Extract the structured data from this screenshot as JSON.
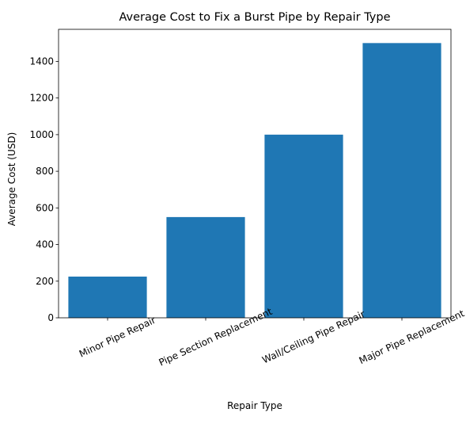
{
  "chart_data": {
    "type": "bar",
    "title": "Average Cost to Fix a Burst Pipe by Repair Type",
    "xlabel": "Repair Type",
    "ylabel": "Average Cost (USD)",
    "categories": [
      "Minor Pipe Repair",
      "Pipe Section Replacement",
      "Wall/Ceiling Pipe Repair",
      "Major Pipe Replacement"
    ],
    "values": [
      225,
      550,
      1000,
      1500
    ],
    "ylim": [
      0,
      1575
    ],
    "yticks": [
      0,
      200,
      400,
      600,
      800,
      1000,
      1200,
      1400
    ],
    "xtick_rotation_deg": 25,
    "bar_color": "#1f77b4",
    "grid": false,
    "legend": "none"
  }
}
